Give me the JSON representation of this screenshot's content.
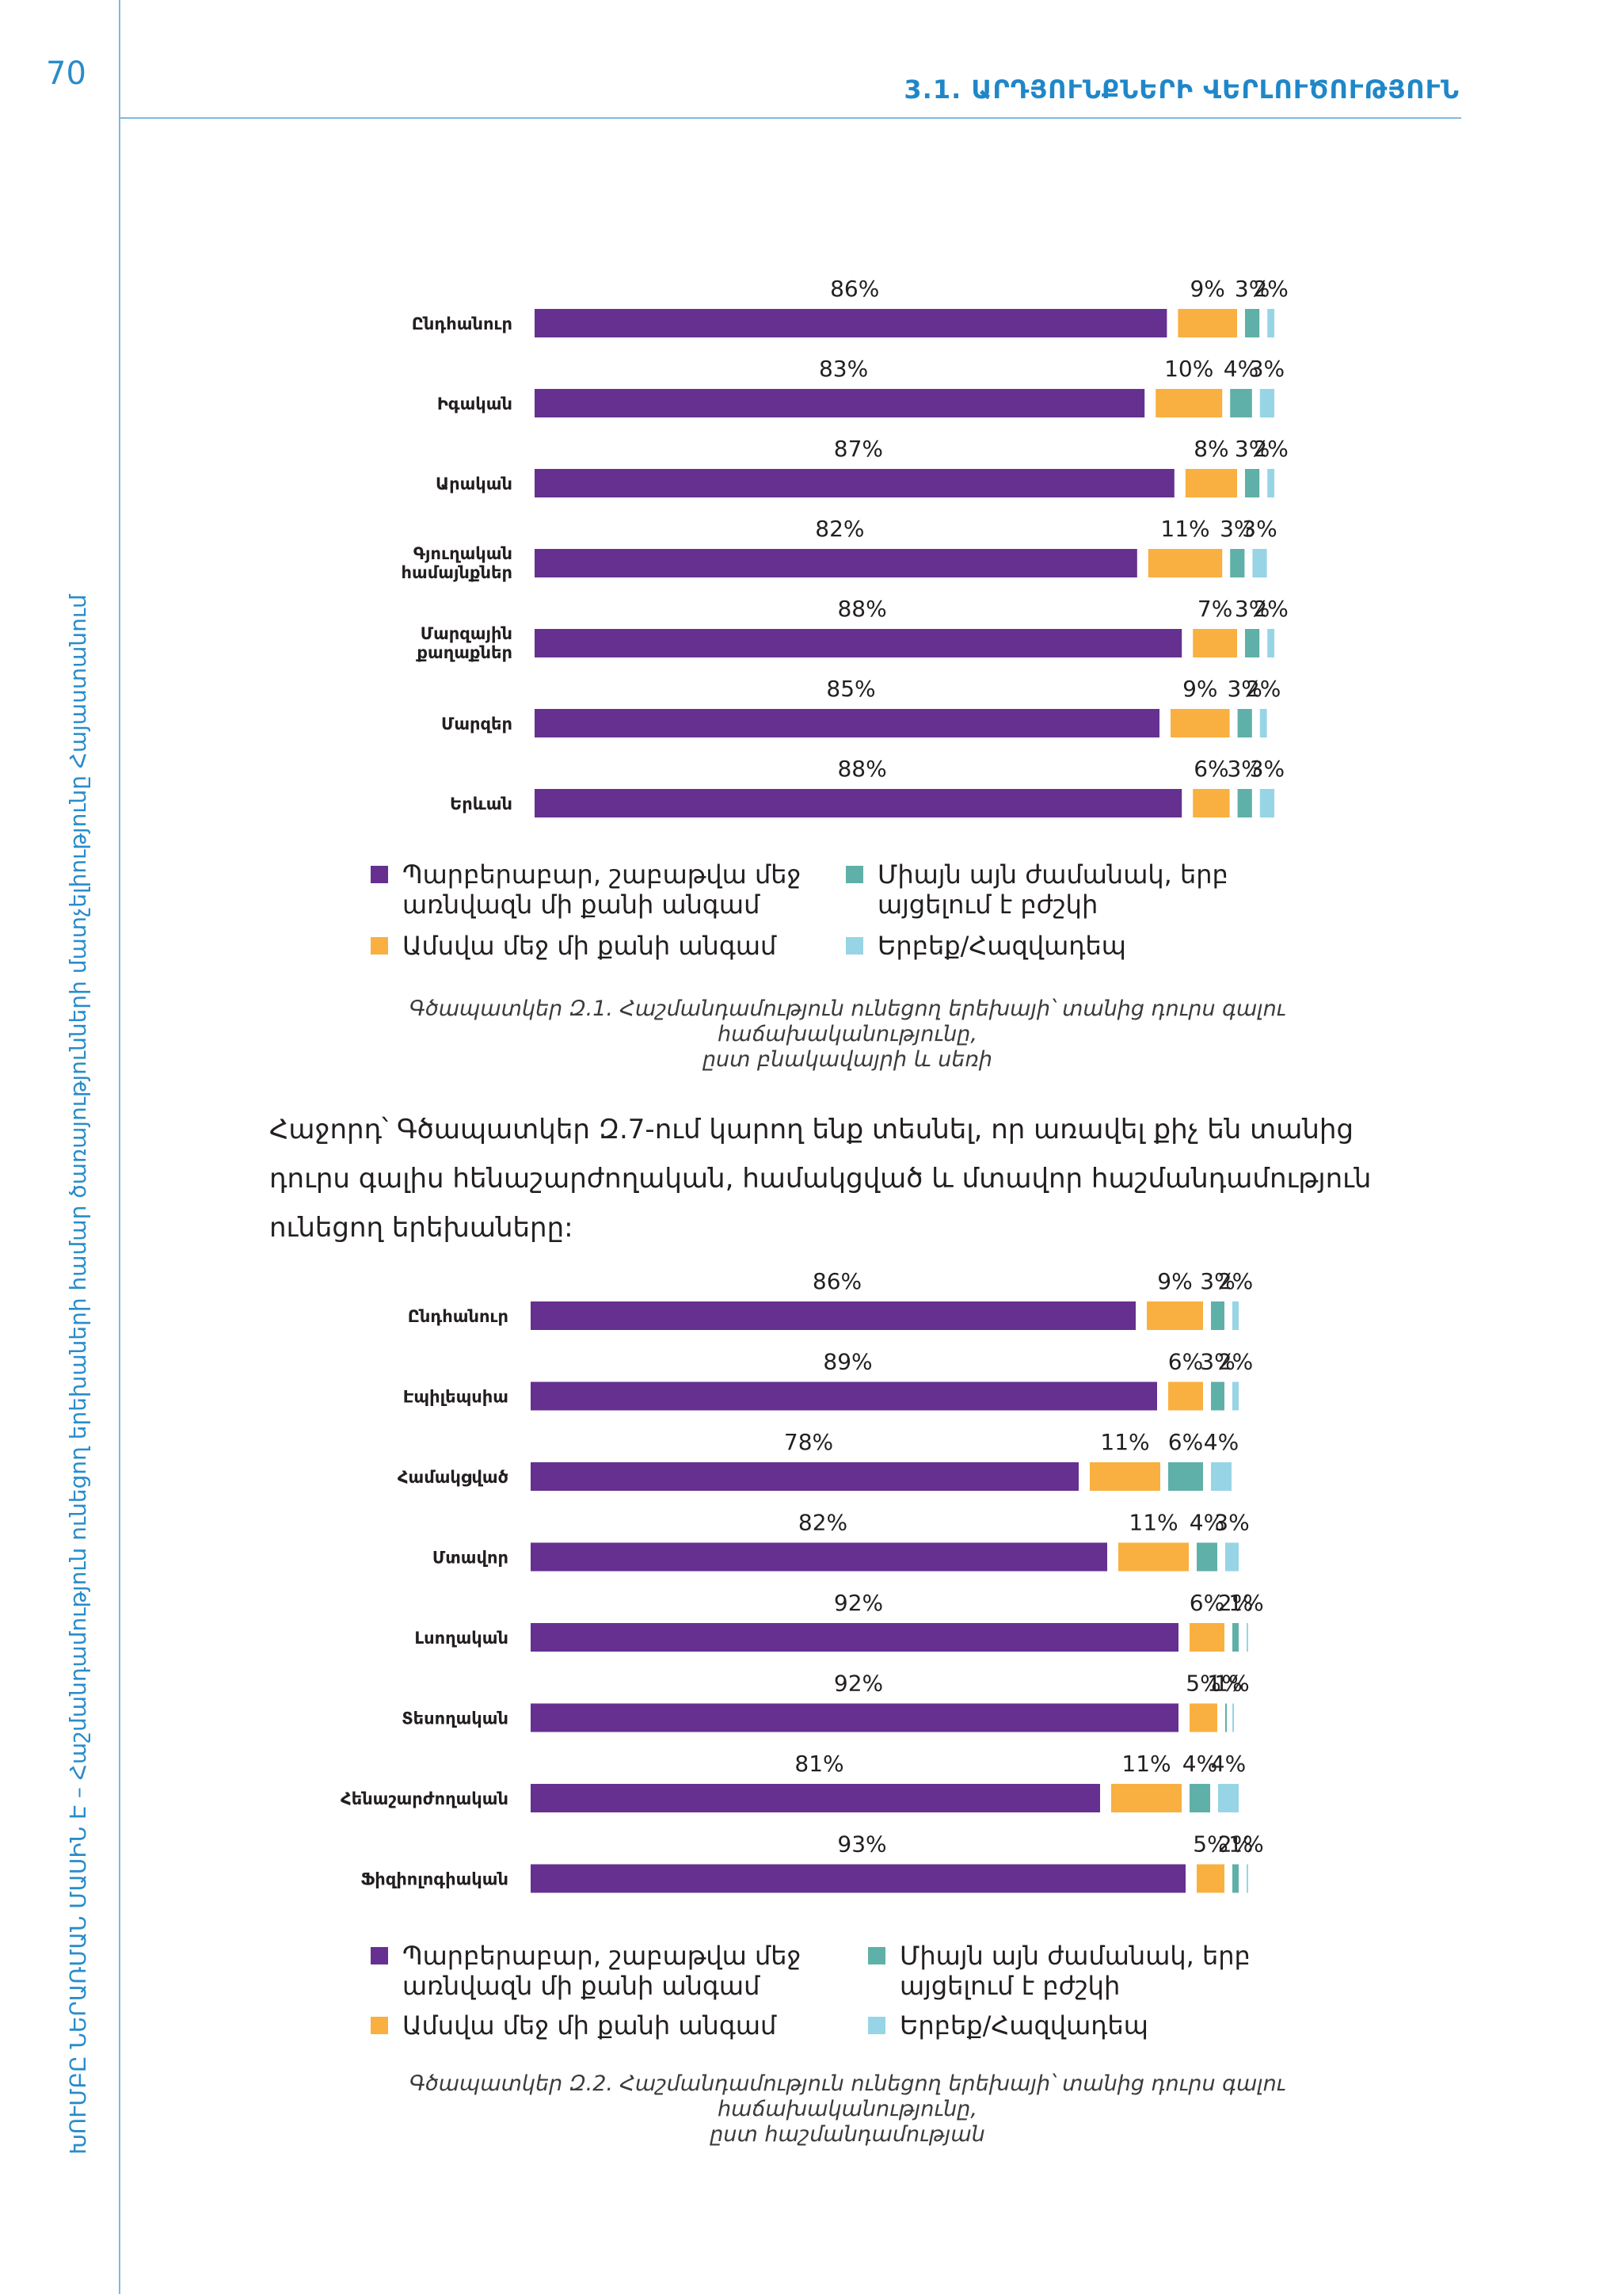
{
  "page": {
    "number": "70",
    "section_title": "3.1. ԱՐԴՅՈՒՆՔՆԵՐԻ ՎԵՐԼՈՒԾՈՒԹՅՈՒՆ",
    "side_title": "ԽՈՒՄԲԸ ՆԵՐԱՌՄԱՆ ՄԱՍԻՆ Է – Հաշմանդամություն ունեցող երեխաների համար ծառայությունների մատչելիությունը Հայաստանում"
  },
  "colors": {
    "purple": "#663090",
    "orange": "#f9b040",
    "teal": "#5fb0a8",
    "lightblue": "#97d4e6",
    "accent": "#2a8cc9"
  },
  "legend": {
    "purple_line1": "Պարբերաբար, շաբաթվա մեջ",
    "purple_line2": "առնվազն մի քանի անգամ",
    "orange": "Ամսվա մեջ մի քանի անգամ",
    "teal_line1": "Միայն այն ժամանակ, երբ",
    "teal_line2": "այցելում է բժշկի",
    "lightblue": "Երբեք/Հազվադեպ"
  },
  "caption1": {
    "line1": "Գծապատկեր Զ.1. Հաշմանդամություն ունեցող երեխայի՝ տանից դուրս գալու հաճախականությունը,",
    "line2": "ըստ բնակավայրի և սեռի"
  },
  "paragraph": "Հաջորդ՝ Գծապատկեր Զ.7-ում կարող ենք տեսնել, որ առավել քիչ են տանից դուրս գալիս հենաշարժողական, համակցված և մտավոր հաշմանդամություն ունեցող երեխաները:",
  "caption2": {
    "line1": "Գծապատկեր Զ.2. Հաշմանդամություն ունեցող երեխայի՝ տանից դուրս գալու հաճախականությունը,",
    "line2": "ըստ հաշմանդամության"
  },
  "chart_data": [
    {
      "type": "bar",
      "stacked": true,
      "orientation": "horizontal",
      "title": "Գծապատկեր Զ.1.",
      "categories": [
        "Ընդհանուր",
        "Իգական",
        "Արական",
        "Գյուղական համայնքներ",
        "Մարզային քաղաքներ",
        "Մարզեր",
        "Երևան"
      ],
      "series": [
        {
          "name": "Պարբերաբար, շաբաթվա մեջ առնվազն մի քանի անգամ",
          "values": [
            86,
            83,
            87,
            82,
            88,
            85,
            88
          ]
        },
        {
          "name": "Ամսվա մեջ մի քանի անգամ",
          "values": [
            9,
            10,
            8,
            11,
            7,
            9,
            6
          ]
        },
        {
          "name": "Միայն այն ժամանակ, երբ այցելում է բժշկի",
          "values": [
            3,
            4,
            3,
            3,
            3,
            3,
            3
          ]
        },
        {
          "name": "Երբեք/Հազվադեպ",
          "values": [
            2,
            3,
            2,
            3,
            2,
            2,
            3
          ]
        }
      ],
      "unit": "%"
    },
    {
      "type": "bar",
      "stacked": true,
      "orientation": "horizontal",
      "title": "Գծապատկեր Զ.2.",
      "categories": [
        "Ընդհանուր",
        "Էպիլեպսիա",
        "Համակցված",
        "Մտավոր",
        "Լսողական",
        "Տեսողական",
        "Հենաշարժողական",
        "Ֆիզիոլոգիական"
      ],
      "series": [
        {
          "name": "Պարբերաբար, շաբաթվա մեջ առնվազն մի քանի անգամ",
          "values": [
            86,
            89,
            78,
            82,
            92,
            92,
            81,
            93
          ]
        },
        {
          "name": "Ամսվա մեջ մի քանի անգամ",
          "values": [
            9,
            6,
            11,
            11,
            6,
            5,
            11,
            5
          ]
        },
        {
          "name": "Միայն այն ժամանակ, երբ այցելում է բժշկի",
          "values": [
            3,
            3,
            6,
            4,
            2,
            1,
            4,
            2
          ]
        },
        {
          "name": "Երբեք/Հազվադեպ",
          "values": [
            2,
            2,
            4,
            3,
            1,
            1,
            4,
            1
          ]
        }
      ],
      "unit": "%"
    }
  ]
}
